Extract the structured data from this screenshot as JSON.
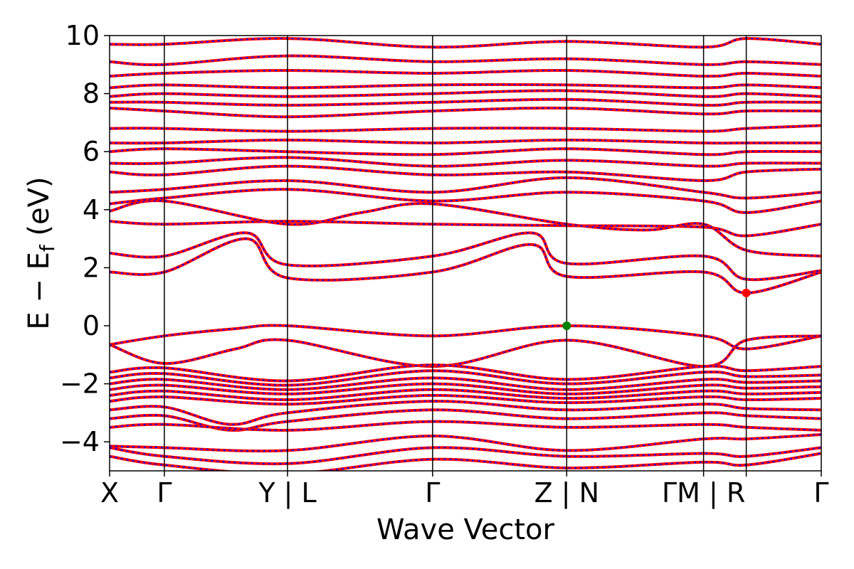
{
  "chart_data": {
    "type": "line",
    "xlabel": "Wave Vector",
    "ylabel_parts": {
      "main": "E − E",
      "sub": "f",
      "unit": "(eV)"
    },
    "ylim": [
      -5,
      10
    ],
    "yticks": [
      -4,
      -2,
      0,
      2,
      4,
      6,
      8,
      10
    ],
    "xlim": [
      0,
      13
    ],
    "kpoints": [
      {
        "pos": 0,
        "label": "X"
      },
      {
        "pos": 1,
        "label": "Γ"
      },
      {
        "pos": 3.25,
        "label": "Y | L"
      },
      {
        "pos": 5.9,
        "label": "Γ"
      },
      {
        "pos": 8.35,
        "label": "Z | N"
      },
      {
        "pos": 10.85,
        "label": "ΓM | R"
      },
      {
        "pos": 11.63,
        "label": ""
      },
      {
        "pos": 13,
        "label": "Γ"
      }
    ],
    "series_styles": {
      "spin_up": {
        "color": "#ff0000",
        "dash": "solid"
      },
      "spin_down": {
        "color": "#0000ff",
        "dash": "dotted"
      }
    },
    "markers": [
      {
        "name": "vbm",
        "x": 8.35,
        "y": 0.0,
        "color": "#008000"
      },
      {
        "name": "cbm",
        "x": 11.63,
        "y": 1.13,
        "color": "#ff0000"
      }
    ],
    "bands": [
      {
        "x": [
          0,
          1,
          2.3,
          3.25,
          5.9,
          8.35,
          10.85,
          11.63,
          13
        ],
        "y": [
          -0.65,
          -0.35,
          -0.1,
          0.0,
          -0.35,
          0.0,
          -0.35,
          -0.8,
          -0.35
        ]
      },
      {
        "x": [
          0,
          1,
          2.3,
          3.25,
          5.9,
          8.35,
          10.85,
          11.63,
          13
        ],
        "y": [
          -0.65,
          -1.3,
          -0.8,
          -0.5,
          -1.4,
          -0.5,
          -1.4,
          -0.5,
          -0.35
        ]
      },
      {
        "x": [
          0,
          1,
          3.25,
          5.9,
          8.35,
          10.85,
          11.63,
          13
        ],
        "y": [
          -1.6,
          -1.45,
          -1.9,
          -1.35,
          -1.85,
          -1.4,
          -1.55,
          -1.4
        ]
      },
      {
        "x": [
          0,
          1,
          3.25,
          5.9,
          8.35,
          10.85,
          11.63,
          13
        ],
        "y": [
          -1.8,
          -1.65,
          -2.05,
          -1.55,
          -2.0,
          -1.6,
          -1.75,
          -1.7
        ]
      },
      {
        "x": [
          0,
          1,
          3.25,
          5.9,
          8.35,
          10.85,
          11.63,
          13
        ],
        "y": [
          -2.0,
          -1.85,
          -2.2,
          -1.8,
          -2.2,
          -1.85,
          -1.95,
          -1.9
        ]
      },
      {
        "x": [
          0,
          1,
          3.25,
          5.9,
          8.35,
          10.85,
          11.63,
          13
        ],
        "y": [
          -2.2,
          -2.05,
          -2.35,
          -2.0,
          -2.35,
          -2.05,
          -2.15,
          -2.1
        ]
      },
      {
        "x": [
          0,
          1,
          3.25,
          5.9,
          8.35,
          10.85,
          11.63,
          13
        ],
        "y": [
          -2.4,
          -2.25,
          -2.55,
          -2.2,
          -2.5,
          -2.25,
          -2.35,
          -2.3
        ]
      },
      {
        "x": [
          0,
          1,
          3.25,
          5.9,
          8.35,
          10.85,
          11.63,
          13
        ],
        "y": [
          -2.6,
          -2.45,
          -2.7,
          -2.4,
          -2.65,
          -2.45,
          -2.55,
          -2.5
        ]
      },
      {
        "x": [
          0,
          1,
          2.2,
          3.25,
          5.9,
          8.35,
          10.85,
          11.63,
          13
        ],
        "y": [
          -2.9,
          -2.8,
          -3.4,
          -3.0,
          -2.6,
          -2.9,
          -2.7,
          -2.85,
          -2.9
        ]
      },
      {
        "x": [
          0,
          1,
          2.2,
          3.25,
          5.9,
          8.35,
          10.85,
          11.63,
          13
        ],
        "y": [
          -3.2,
          -3.1,
          -3.6,
          -3.3,
          -2.9,
          -3.2,
          -3.0,
          -3.1,
          -3.2
        ]
      },
      {
        "x": [
          0,
          1,
          3.25,
          5.9,
          8.35,
          10.85,
          11.63,
          13
        ],
        "y": [
          -3.5,
          -3.4,
          -3.6,
          -3.3,
          -3.5,
          -3.4,
          -3.5,
          -3.6
        ]
      },
      {
        "x": [
          0,
          1,
          3.25,
          5.9,
          8.35,
          10.85,
          11.63,
          13
        ],
        "y": [
          -4.15,
          -4.2,
          -4.3,
          -3.8,
          -4.3,
          -3.9,
          -3.9,
          -3.75
        ]
      },
      {
        "x": [
          0,
          1,
          3.25,
          5.9,
          8.35,
          10.85,
          11.63,
          13
        ],
        "y": [
          -4.2,
          -4.5,
          -4.75,
          -4.2,
          -4.5,
          -4.4,
          -4.5,
          -4.2
        ]
      },
      {
        "x": [
          0,
          1,
          3.25,
          5.9,
          8.35,
          10.85,
          11.63,
          13
        ],
        "y": [
          -4.5,
          -4.8,
          -5.1,
          -4.6,
          -4.9,
          -4.7,
          -4.8,
          -4.4
        ]
      },
      {
        "x": [
          0,
          1,
          2.5,
          3.25,
          5.9,
          7.7,
          8.35,
          10.85,
          11.63,
          13
        ],
        "y": [
          1.85,
          1.85,
          3.0,
          1.65,
          1.85,
          2.8,
          1.7,
          1.85,
          1.13,
          1.85
        ]
      },
      {
        "x": [
          0,
          1,
          2.5,
          3.25,
          5.9,
          7.7,
          8.35,
          10.85,
          11.63,
          13
        ],
        "y": [
          2.5,
          2.4,
          3.2,
          2.1,
          2.4,
          3.2,
          2.15,
          2.4,
          1.6,
          1.9
        ]
      },
      {
        "x": [
          0,
          1,
          3.25,
          5.9,
          8.35,
          10.85,
          11.63,
          13
        ],
        "y": [
          3.6,
          3.5,
          3.6,
          3.5,
          3.45,
          3.4,
          3.1,
          3.5
        ]
      },
      {
        "x": [
          0,
          1,
          3.25,
          4.6,
          5.9,
          8.35,
          9.8,
          10.85,
          11.63,
          13
        ],
        "y": [
          3.95,
          4.3,
          3.5,
          3.9,
          4.2,
          3.5,
          3.3,
          3.5,
          2.6,
          2.4
        ]
      },
      {
        "x": [
          0,
          1,
          3.25,
          5.9,
          8.35,
          10.85,
          11.63,
          13
        ],
        "y": [
          4.2,
          4.4,
          4.7,
          4.3,
          4.6,
          4.3,
          3.9,
          4.3
        ]
      },
      {
        "x": [
          0,
          1,
          3.25,
          5.9,
          8.35,
          10.85,
          11.63,
          13
        ],
        "y": [
          4.6,
          4.7,
          5.0,
          4.6,
          5.1,
          4.6,
          4.4,
          4.6
        ]
      },
      {
        "x": [
          0,
          1,
          3.25,
          5.9,
          8.35,
          10.85,
          11.63,
          13
        ],
        "y": [
          5.3,
          5.2,
          5.5,
          5.2,
          5.3,
          5.0,
          5.3,
          5.4
        ]
      },
      {
        "x": [
          0,
          1,
          3.25,
          5.9,
          8.35,
          10.85,
          11.63,
          13
        ],
        "y": [
          5.6,
          5.6,
          5.8,
          5.5,
          5.7,
          5.5,
          5.6,
          5.6
        ]
      },
      {
        "x": [
          0,
          1,
          3.25,
          5.9,
          8.35,
          10.85,
          11.63,
          13
        ],
        "y": [
          6.0,
          6.1,
          6.0,
          5.9,
          6.1,
          5.9,
          6.0,
          6.0
        ]
      },
      {
        "x": [
          0,
          1,
          3.25,
          5.9,
          8.35,
          10.85,
          11.63,
          13
        ],
        "y": [
          6.3,
          6.3,
          6.4,
          6.3,
          6.4,
          6.3,
          6.3,
          6.3
        ]
      },
      {
        "x": [
          0,
          1,
          3.25,
          5.9,
          8.35,
          10.85,
          11.63,
          13
        ],
        "y": [
          6.8,
          6.8,
          6.7,
          6.8,
          6.8,
          6.7,
          6.8,
          6.9
        ]
      },
      {
        "x": [
          0,
          1,
          3.25,
          5.9,
          8.35,
          10.85,
          11.63,
          13
        ],
        "y": [
          7.5,
          7.4,
          7.2,
          7.4,
          7.5,
          7.3,
          7.4,
          7.4
        ]
      },
      {
        "x": [
          0,
          1,
          3.25,
          5.9,
          8.35,
          10.85,
          11.63,
          13
        ],
        "y": [
          7.7,
          7.7,
          7.6,
          7.7,
          7.8,
          7.6,
          7.7,
          7.7
        ]
      },
      {
        "x": [
          0,
          1,
          3.25,
          5.9,
          8.35,
          10.85,
          11.63,
          13
        ],
        "y": [
          7.9,
          8.0,
          7.9,
          8.0,
          8.1,
          7.9,
          8.0,
          7.9
        ]
      },
      {
        "x": [
          0,
          1,
          3.25,
          5.9,
          8.35,
          10.85,
          11.63,
          13
        ],
        "y": [
          8.2,
          8.3,
          8.2,
          8.3,
          8.3,
          8.2,
          8.3,
          8.2
        ]
      },
      {
        "x": [
          0,
          1,
          3.25,
          5.9,
          8.35,
          10.85,
          11.63,
          13
        ],
        "y": [
          8.6,
          8.7,
          8.8,
          8.7,
          8.8,
          8.6,
          8.7,
          8.6
        ]
      },
      {
        "x": [
          0,
          1,
          3.25,
          5.9,
          8.35,
          10.85,
          11.63,
          13
        ],
        "y": [
          9.1,
          9.0,
          9.3,
          9.1,
          9.2,
          9.0,
          9.1,
          9.0
        ]
      },
      {
        "x": [
          0,
          1,
          3.25,
          5.9,
          8.35,
          10.85,
          11.63,
          13
        ],
        "y": [
          9.7,
          9.7,
          9.9,
          9.6,
          9.8,
          9.6,
          9.9,
          9.7
        ]
      }
    ]
  }
}
